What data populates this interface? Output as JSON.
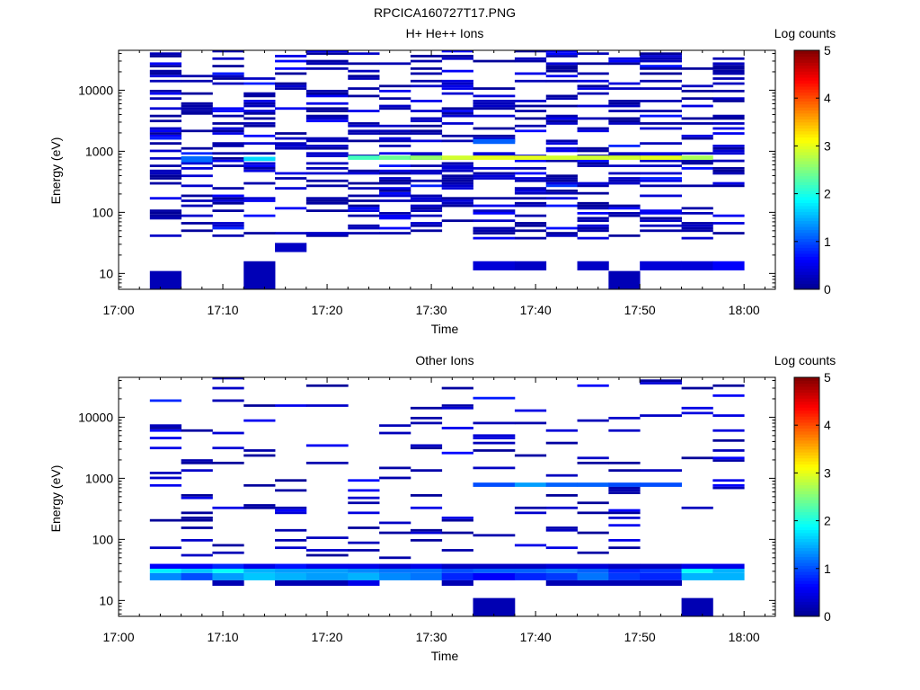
{
  "figure": {
    "title": "RPCICA160727T17.PNG",
    "colorbar_label": "Log counts",
    "colorbar_ticks": [
      "0",
      "1",
      "2",
      "3",
      "4",
      "5"
    ],
    "colormap": [
      "#00008f",
      "#0000ff",
      "#00ffff",
      "#ffff00",
      "#ff0000",
      "#800000"
    ]
  },
  "chart_data": [
    {
      "type": "heatmap",
      "title": "H+ He++ Ions",
      "xlabel": "Time",
      "ylabel": "Energy (eV)",
      "x_ticks": [
        "17:00",
        "17:10",
        "17:20",
        "17:30",
        "17:40",
        "17:50",
        "18:00"
      ],
      "y_ticks": [
        "10",
        "100",
        "1000",
        "10000"
      ],
      "yscale": "log",
      "xlim": [
        "17:00",
        "18:03"
      ],
      "ylim": [
        5.5,
        45000
      ],
      "zlim": [
        0,
        5
      ],
      "time_bins": [
        "17:03",
        "17:06",
        "17:09",
        "17:12",
        "17:15",
        "17:18",
        "17:22",
        "17:25",
        "17:28",
        "17:31",
        "17:34",
        "17:38",
        "17:41",
        "17:44",
        "17:47",
        "17:50",
        "17:54",
        "17:57",
        "18:00"
      ],
      "energy_log10_min": 0.74,
      "energy_log10_max": 4.66,
      "energy_channels": 96,
      "seed": 1703,
      "density": 0.38,
      "low_cutoff": 1.55,
      "columns": [
        {
          "start": "17:03",
          "extra_bands": [
            [
              0.74,
              1.04,
              0.22
            ]
          ]
        },
        {
          "start": "17:06",
          "extra_bands": [
            [
              2.82,
              2.92,
              1.15
            ]
          ]
        },
        {
          "start": "17:09",
          "extra_bands": []
        },
        {
          "start": "17:12",
          "extra_bands": [
            [
              2.84,
              2.91,
              1.7
            ],
            [
              0.74,
              1.2,
              0.22
            ]
          ]
        },
        {
          "start": "17:15",
          "extra_bands": [
            [
              1.35,
              1.5,
              0.3
            ]
          ]
        },
        {
          "start": "17:18",
          "extra_bands": [
            [
              1.62,
              1.68,
              0.3
            ]
          ]
        },
        {
          "start": "17:22",
          "extra_bands": [
            [
              2.86,
              2.93,
              2.2
            ]
          ]
        },
        {
          "start": "17:25",
          "extra_bands": [
            [
              2.86,
              2.93,
              2.4
            ]
          ]
        },
        {
          "start": "17:28",
          "extra_bands": [
            [
              2.86,
              2.93,
              2.6
            ]
          ]
        },
        {
          "start": "17:31",
          "extra_bands": [
            [
              2.86,
              2.93,
              2.9
            ]
          ]
        },
        {
          "start": "17:34",
          "extra_bands": [
            [
              2.86,
              2.93,
              3.0
            ],
            [
              1.05,
              1.2,
              0.4
            ],
            [
              3.12,
              3.2,
              1.1
            ]
          ]
        },
        {
          "start": "17:38",
          "extra_bands": [
            [
              2.86,
              2.93,
              3.0
            ],
            [
              1.05,
              1.2,
              0.3
            ]
          ]
        },
        {
          "start": "17:41",
          "extra_bands": [
            [
              2.86,
              2.93,
              2.9
            ]
          ]
        },
        {
          "start": "17:44",
          "extra_bands": [
            [
              2.86,
              2.93,
              2.9
            ],
            [
              1.05,
              1.2,
              0.3
            ]
          ]
        },
        {
          "start": "17:47",
          "extra_bands": [
            [
              2.86,
              2.93,
              2.9
            ],
            [
              0.74,
              1.04,
              0.22
            ]
          ]
        },
        {
          "start": "17:50",
          "extra_bands": [
            [
              2.86,
              2.93,
              3.0
            ],
            [
              1.05,
              1.2,
              0.4
            ]
          ]
        },
        {
          "start": "17:54",
          "extra_bands": [
            [
              2.86,
              2.93,
              2.7
            ],
            [
              1.05,
              1.2,
              0.4
            ]
          ]
        },
        {
          "start": "17:57",
          "extra_bands": [
            [
              1.05,
              1.2,
              0.6
            ]
          ]
        }
      ]
    },
    {
      "type": "heatmap",
      "title": "Other Ions",
      "xlabel": "Time",
      "ylabel": "Energy (eV)",
      "x_ticks": [
        "17:00",
        "17:10",
        "17:20",
        "17:30",
        "17:40",
        "17:50",
        "18:00"
      ],
      "y_ticks": [
        "10",
        "100",
        "1000",
        "10000"
      ],
      "yscale": "log",
      "xlim": [
        "17:00",
        "18:03"
      ],
      "ylim": [
        5.5,
        45000
      ],
      "zlim": [
        0,
        5
      ],
      "time_bins": [
        "17:03",
        "17:06",
        "17:09",
        "17:12",
        "17:15",
        "17:18",
        "17:22",
        "17:25",
        "17:28",
        "17:31",
        "17:34",
        "17:38",
        "17:41",
        "17:44",
        "17:47",
        "17:50",
        "17:54",
        "17:57",
        "18:00"
      ],
      "energy_log10_min": 0.74,
      "energy_log10_max": 4.66,
      "energy_channels": 96,
      "seed": 2909,
      "density": 0.12,
      "low_cutoff": 1.65,
      "columns": [
        {
          "start": "17:03",
          "extra_bands": [
            [
              1.33,
              1.45,
              1.3
            ],
            [
              1.45,
              1.52,
              1.8
            ],
            [
              1.52,
              1.6,
              0.6
            ]
          ]
        },
        {
          "start": "17:06",
          "extra_bands": [
            [
              1.33,
              1.45,
              1.0
            ],
            [
              1.45,
              1.52,
              1.6
            ],
            [
              1.52,
              1.6,
              0.6
            ]
          ]
        },
        {
          "start": "17:09",
          "extra_bands": [
            [
              1.33,
              1.45,
              1.4
            ],
            [
              1.45,
              1.52,
              1.9
            ],
            [
              1.52,
              1.6,
              0.8
            ],
            [
              1.24,
              1.33,
              0.2
            ]
          ]
        },
        {
          "start": "17:12",
          "extra_bands": [
            [
              1.33,
              1.45,
              1.6
            ],
            [
              1.45,
              1.52,
              1.5
            ],
            [
              1.52,
              1.6,
              0.5
            ]
          ]
        },
        {
          "start": "17:15",
          "extra_bands": [
            [
              1.33,
              1.45,
              1.5
            ],
            [
              1.45,
              1.52,
              1.4
            ],
            [
              1.52,
              1.6,
              0.7
            ],
            [
              1.24,
              1.33,
              0.2
            ]
          ]
        },
        {
          "start": "17:18",
          "extra_bands": [
            [
              1.33,
              1.45,
              1.4
            ],
            [
              1.45,
              1.52,
              1.4
            ],
            [
              1.52,
              1.6,
              0.5
            ],
            [
              1.24,
              1.33,
              0.2
            ]
          ]
        },
        {
          "start": "17:22",
          "extra_bands": [
            [
              1.33,
              1.45,
              1.5
            ],
            [
              1.45,
              1.52,
              1.3
            ],
            [
              1.52,
              1.6,
              0.5
            ],
            [
              1.24,
              1.33,
              0.5
            ]
          ]
        },
        {
          "start": "17:25",
          "extra_bands": [
            [
              1.33,
              1.45,
              1.3
            ],
            [
              1.45,
              1.52,
              1.2
            ],
            [
              1.52,
              1.6,
              0.4
            ]
          ]
        },
        {
          "start": "17:28",
          "extra_bands": [
            [
              1.33,
              1.45,
              1.2
            ],
            [
              1.45,
              1.52,
              1.2
            ],
            [
              1.52,
              1.6,
              0.5
            ]
          ]
        },
        {
          "start": "17:31",
          "extra_bands": [
            [
              1.33,
              1.45,
              0.8
            ],
            [
              1.45,
              1.52,
              1.0
            ],
            [
              1.52,
              1.6,
              0.3
            ],
            [
              1.24,
              1.33,
              0.2
            ]
          ]
        },
        {
          "start": "17:34",
          "extra_bands": [
            [
              1.33,
              1.45,
              0.6
            ],
            [
              1.45,
              1.52,
              1.1
            ],
            [
              1.52,
              1.6,
              0.3
            ],
            [
              2.86,
              2.93,
              1.0
            ],
            [
              0.74,
              1.04,
              0.2
            ]
          ]
        },
        {
          "start": "17:38",
          "extra_bands": [
            [
              1.33,
              1.45,
              0.8
            ],
            [
              1.45,
              1.52,
              1.1
            ],
            [
              1.52,
              1.6,
              0.3
            ],
            [
              2.86,
              2.93,
              1.4
            ]
          ]
        },
        {
          "start": "17:41",
          "extra_bands": [
            [
              1.33,
              1.45,
              0.9
            ],
            [
              1.45,
              1.52,
              1.2
            ],
            [
              1.52,
              1.6,
              0.4
            ],
            [
              2.86,
              2.93,
              1.1
            ],
            [
              1.24,
              1.33,
              0.2
            ]
          ]
        },
        {
          "start": "17:44",
          "extra_bands": [
            [
              1.33,
              1.45,
              1.2
            ],
            [
              1.45,
              1.52,
              1.1
            ],
            [
              1.52,
              1.6,
              0.4
            ],
            [
              2.86,
              2.93,
              1.1
            ],
            [
              1.24,
              1.33,
              0.2
            ]
          ]
        },
        {
          "start": "17:47",
          "extra_bands": [
            [
              1.33,
              1.45,
              0.9
            ],
            [
              1.45,
              1.52,
              0.8
            ],
            [
              1.52,
              1.6,
              0.3
            ],
            [
              2.86,
              2.93,
              1.0
            ],
            [
              1.24,
              1.33,
              0.2
            ]
          ]
        },
        {
          "start": "17:50",
          "extra_bands": [
            [
              1.33,
              1.45,
              0.8
            ],
            [
              1.45,
              1.52,
              0.9
            ],
            [
              1.52,
              1.6,
              0.3
            ],
            [
              2.86,
              2.93,
              1.0
            ],
            [
              1.24,
              1.33,
              0.2
            ]
          ]
        },
        {
          "start": "17:54",
          "extra_bands": [
            [
              1.33,
              1.45,
              1.5
            ],
            [
              1.45,
              1.52,
              1.9
            ],
            [
              1.52,
              1.6,
              0.5
            ],
            [
              0.74,
              1.04,
              0.2
            ]
          ]
        },
        {
          "start": "17:57",
          "extra_bands": [
            [
              1.33,
              1.45,
              1.5
            ],
            [
              1.45,
              1.52,
              1.5
            ],
            [
              1.52,
              1.6,
              0.5
            ]
          ]
        }
      ]
    }
  ]
}
